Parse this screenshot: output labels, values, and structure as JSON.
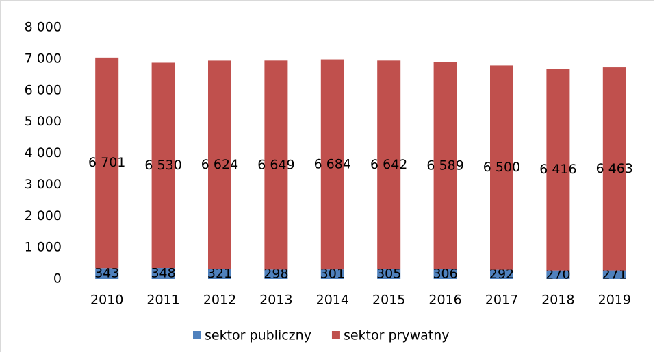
{
  "chart_data": {
    "type": "bar",
    "stacked": true,
    "categories": [
      "2010",
      "2011",
      "2012",
      "2013",
      "2014",
      "2015",
      "2016",
      "2017",
      "2018",
      "2019"
    ],
    "series": [
      {
        "name": "sektor publiczny",
        "color": "#4f81bd",
        "values": [
          343,
          348,
          321,
          298,
          301,
          305,
          306,
          292,
          270,
          271
        ]
      },
      {
        "name": "sektor prywatny",
        "color": "#c0504d",
        "values": [
          6701,
          6530,
          6624,
          6649,
          6684,
          6642,
          6589,
          6500,
          6416,
          6463
        ],
        "value_labels": [
          "6 701",
          "6 530",
          "6 624",
          "6 649",
          "6 684",
          "6 642",
          "6 589",
          "6 500",
          "6 416",
          "6 463"
        ]
      }
    ],
    "ylim": [
      0,
      8000
    ],
    "yticks": [
      0,
      {
        "value": 1000,
        "label": "1 000"
      },
      {
        "value": 2000,
        "label": "2 000"
      },
      {
        "value": 3000,
        "label": "3 000"
      },
      {
        "value": 4000,
        "label": "4 000"
      },
      {
        "value": 5000,
        "label": "5 000"
      },
      {
        "value": 6000,
        "label": "6 000"
      },
      {
        "value": 7000,
        "label": "7 000"
      },
      {
        "value": 8000,
        "label": "8 000"
      }
    ],
    "grid": false,
    "legend": "bottom"
  }
}
